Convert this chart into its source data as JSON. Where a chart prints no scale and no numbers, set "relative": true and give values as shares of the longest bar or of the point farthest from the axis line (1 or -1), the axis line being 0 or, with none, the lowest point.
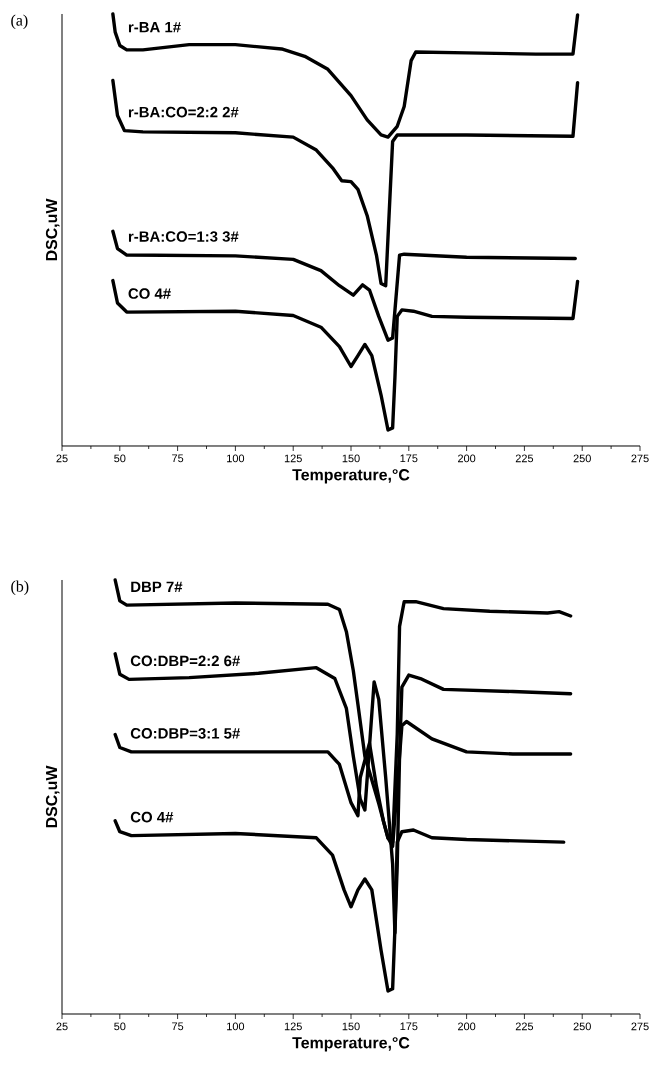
{
  "chart_data": [
    {
      "type": "line",
      "annotations": [
        "(a)"
      ],
      "xlabel": "Temperature,°C",
      "ylabel": "DSC,uW",
      "relative": true,
      "legend": false,
      "marker": "none",
      "line_style": "solid",
      "grid": false,
      "xlim": [
        25,
        275
      ],
      "xticks": [
        25,
        50,
        75,
        100,
        125,
        150,
        175,
        200,
        225,
        250,
        275
      ],
      "series": [
        {
          "name": "r-BA  1#",
          "color": "#000000",
          "x": [
            47,
            48,
            50,
            53,
            60,
            80,
            100,
            120,
            130,
            140,
            150,
            157,
            163,
            166,
            170,
            173,
            176,
            178,
            200,
            230,
            246,
            248
          ],
          "values": [
            1.0,
            0.958,
            0.927,
            0.917,
            0.917,
            0.929,
            0.929,
            0.919,
            0.902,
            0.872,
            0.811,
            0.755,
            0.72,
            0.715,
            0.74,
            0.786,
            0.892,
            0.912,
            0.91,
            0.907,
            0.907,
            0.998
          ]
        },
        {
          "name": "r-BA:CO=2:2  2#",
          "color": "#000000",
          "x": [
            47,
            49,
            52,
            60,
            100,
            125,
            135,
            142,
            146,
            150,
            153,
            157,
            161,
            163,
            165,
            168,
            170,
            200,
            246,
            248
          ],
          "values": [
            0.846,
            0.765,
            0.73,
            0.727,
            0.725,
            0.715,
            0.685,
            0.644,
            0.614,
            0.612,
            0.594,
            0.533,
            0.442,
            0.376,
            0.371,
            0.705,
            0.72,
            0.72,
            0.717,
            0.841
          ]
        },
        {
          "name": "r-BA:CO=1:3  3#",
          "color": "#000000",
          "x": [
            47,
            49,
            53,
            100,
            125,
            137,
            145,
            151,
            155,
            158,
            162,
            166,
            168,
            171,
            173,
            200,
            247
          ],
          "values": [
            0.497,
            0.457,
            0.442,
            0.44,
            0.432,
            0.406,
            0.371,
            0.349,
            0.373,
            0.361,
            0.3,
            0.245,
            0.25,
            0.442,
            0.444,
            0.437,
            0.434
          ]
        },
        {
          "name": "CO  4#",
          "color": "#000000",
          "x": [
            47,
            49,
            53,
            100,
            125,
            137,
            145,
            150,
            153,
            156,
            159,
            163,
            166,
            168,
            169,
            170,
            172,
            177,
            185,
            200,
            246,
            248
          ],
          "values": [
            0.383,
            0.331,
            0.31,
            0.312,
            0.302,
            0.275,
            0.23,
            0.184,
            0.209,
            0.235,
            0.209,
            0.118,
            0.037,
            0.042,
            0.159,
            0.3,
            0.315,
            0.312,
            0.3,
            0.298,
            0.295,
            0.381
          ]
        }
      ]
    },
    {
      "type": "line",
      "annotations": [
        "(b)"
      ],
      "xlabel": "Temperature,°C",
      "ylabel": "DSC,uW",
      "relative": true,
      "legend": false,
      "marker": "none",
      "line_style": "solid",
      "grid": false,
      "xlim": [
        25,
        275
      ],
      "xticks": [
        25,
        50,
        75,
        100,
        125,
        150,
        175,
        200,
        225,
        250,
        275
      ],
      "series": [
        {
          "name": "DBP 7#",
          "color": "#000000",
          "x": [
            48,
            50,
            53,
            100,
            140,
            145,
            148,
            151,
            153,
            156,
            162,
            166,
            168,
            170,
            171,
            173,
            178,
            190,
            210,
            235,
            240,
            245
          ],
          "values": [
            1.0,
            0.952,
            0.942,
            0.947,
            0.944,
            0.932,
            0.881,
            0.791,
            0.713,
            0.594,
            0.485,
            0.405,
            0.396,
            0.644,
            0.893,
            0.95,
            0.95,
            0.934,
            0.928,
            0.924,
            0.927,
            0.917
          ]
        },
        {
          "name": "CO:DBP=2:2  6#",
          "color": "#000000",
          "x": [
            48,
            50,
            54,
            80,
            110,
            135,
            143,
            148,
            151,
            154,
            156,
            160,
            162,
            165,
            168,
            169,
            170,
            171,
            172,
            175,
            180,
            190,
            220,
            245
          ],
          "values": [
            0.83,
            0.783,
            0.771,
            0.775,
            0.785,
            0.798,
            0.773,
            0.704,
            0.594,
            0.495,
            0.47,
            0.765,
            0.725,
            0.545,
            0.346,
            0.187,
            0.346,
            0.594,
            0.753,
            0.781,
            0.773,
            0.748,
            0.743,
            0.738
          ]
        },
        {
          "name": "CO:DBP=3:1  5#",
          "color": "#000000",
          "x": [
            48,
            50,
            55,
            100,
            140,
            145,
            150,
            153,
            154,
            158,
            161,
            164,
            166,
            168,
            170,
            172,
            174,
            185,
            200,
            220,
            245
          ],
          "values": [
            0.644,
            0.614,
            0.604,
            0.604,
            0.604,
            0.575,
            0.487,
            0.457,
            0.545,
            0.624,
            0.525,
            0.445,
            0.406,
            0.386,
            0.525,
            0.664,
            0.674,
            0.634,
            0.604,
            0.599,
            0.599
          ]
        },
        {
          "name": "CO  4#",
          "color": "#000000",
          "x": [
            48,
            50,
            55,
            100,
            135,
            142,
            147,
            150,
            153,
            156,
            159,
            163,
            166,
            168,
            169,
            170,
            172,
            177,
            185,
            200,
            242
          ],
          "values": [
            0.445,
            0.42,
            0.411,
            0.416,
            0.406,
            0.366,
            0.286,
            0.247,
            0.286,
            0.311,
            0.286,
            0.147,
            0.053,
            0.058,
            0.197,
            0.396,
            0.42,
            0.424,
            0.406,
            0.402,
            0.396
          ]
        }
      ]
    }
  ]
}
